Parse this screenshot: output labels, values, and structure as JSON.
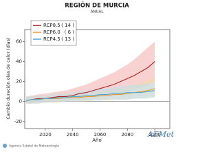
{
  "chart_data": {
    "type": "line",
    "title": "REGIÓN DE MURCIA",
    "subtitle": "ANUAL",
    "y_label": "Cambio duración olas de calor (días)",
    "x_label": "Año",
    "x": [
      2006,
      2010,
      2015,
      2020,
      2025,
      2030,
      2035,
      2040,
      2045,
      2050,
      2055,
      2060,
      2065,
      2070,
      2075,
      2080,
      2085,
      2090,
      2095,
      2100
    ],
    "xlim": [
      2005,
      2111
    ],
    "xticks": [
      2020,
      2040,
      2060,
      2080,
      2100
    ],
    "ylim": [
      -27,
      72
    ],
    "yticks": [
      -20,
      0,
      20,
      40,
      60
    ],
    "reference_line": 0,
    "series": [
      {
        "name": "RCP8.5",
        "runs": "( 14 )",
        "color": "#b02020",
        "band_color": "#f3b3b3",
        "values": [
          1,
          2,
          3,
          3,
          4,
          5,
          5,
          6,
          8,
          9,
          11,
          13,
          15,
          17,
          20,
          23,
          26,
          30,
          34,
          40
        ],
        "lower": [
          -2,
          -2,
          -1,
          -1,
          0,
          0,
          0,
          1,
          2,
          2,
          3,
          4,
          5,
          6,
          8,
          10,
          12,
          14,
          16,
          20
        ],
        "upper": [
          5,
          6,
          7,
          8,
          9,
          10,
          11,
          13,
          15,
          17,
          20,
          23,
          26,
          29,
          33,
          37,
          42,
          48,
          54,
          60
        ]
      },
      {
        "name": "RCP6.0",
        "runs": "(  6 )",
        "color": "#e89a2c",
        "band_color": "#f7d7a0",
        "values": [
          1,
          2,
          2,
          3,
          3,
          3,
          4,
          4,
          4,
          5,
          5,
          6,
          6,
          7,
          7,
          8,
          9,
          10,
          11,
          13
        ],
        "lower": [
          -2,
          -2,
          -2,
          -1,
          -1,
          -1,
          0,
          0,
          0,
          0,
          1,
          1,
          1,
          2,
          2,
          2,
          3,
          3,
          4,
          5
        ],
        "upper": [
          5,
          5,
          6,
          6,
          7,
          7,
          8,
          8,
          9,
          10,
          10,
          11,
          12,
          13,
          14,
          15,
          17,
          19,
          21,
          24
        ]
      },
      {
        "name": "RCP4.5",
        "runs": "( 13 )",
        "color": "#4ea6d4",
        "band_color": "#bde0f1",
        "values": [
          1,
          2,
          2,
          3,
          3,
          4,
          4,
          5,
          5,
          6,
          6,
          7,
          7,
          8,
          8,
          9,
          9,
          9,
          10,
          11
        ],
        "lower": [
          -2,
          -2,
          -2,
          -1,
          -1,
          0,
          0,
          0,
          0,
          1,
          1,
          1,
          2,
          2,
          2,
          2,
          3,
          3,
          3,
          4
        ],
        "upper": [
          5,
          5,
          6,
          6,
          7,
          8,
          8,
          9,
          10,
          11,
          12,
          13,
          13,
          14,
          15,
          16,
          17,
          17,
          18,
          19
        ]
      }
    ]
  },
  "footer": "Agencia Estatal de Meteorología",
  "logo": "AEMet"
}
